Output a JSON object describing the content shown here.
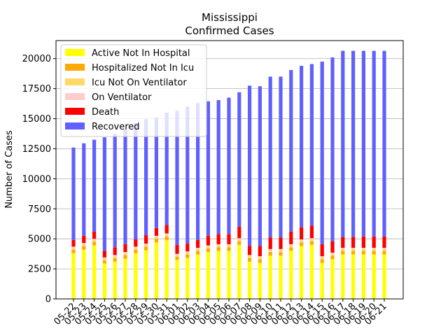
{
  "chart_data": {
    "type": "bar",
    "stacked": true,
    "title": "Mississippi",
    "subtitle": "Confirmed Cases",
    "xlabel": "",
    "ylabel": "Number of Cases",
    "ylim": [
      0,
      21500
    ],
    "yticks": [
      0,
      2500,
      5000,
      7500,
      10000,
      12500,
      15000,
      17500,
      20000
    ],
    "ytick_labels": [
      "0",
      "2500",
      "5000",
      "7500",
      "10000",
      "12500",
      "15000",
      "17500",
      "20000"
    ],
    "grid": "horizontal",
    "legend_position": "top-left",
    "categories": [
      "05-22",
      "05-23",
      "05-24",
      "05-25",
      "05-26",
      "05-27",
      "05-28",
      "05-29",
      "05-30",
      "05-31",
      "06-01",
      "06-02",
      "06-03",
      "06-04",
      "06-05",
      "06-06",
      "06-07",
      "06-08",
      "06-09",
      "06-10",
      "06-11",
      "06-12",
      "06-13",
      "06-14",
      "06-15",
      "06-16",
      "06-17",
      "06-18",
      "06-19",
      "06-20",
      "06-21"
    ],
    "series": [
      {
        "name": "Active Not In Hospital",
        "color": "#ffff00",
        "values": [
          3800,
          4100,
          4450,
          2950,
          3100,
          3350,
          3800,
          4050,
          4700,
          4900,
          3250,
          3400,
          3700,
          3900,
          4000,
          4000,
          4500,
          3100,
          3000,
          3600,
          3600,
          4000,
          4400,
          4500,
          3000,
          3300,
          3700,
          3700,
          3700,
          3700,
          3700
        ]
      },
      {
        "name": "Hospitalized Not In Icu",
        "color": "#ffaa00",
        "values": [
          300,
          300,
          300,
          250,
          300,
          300,
          300,
          300,
          300,
          300,
          250,
          300,
          300,
          300,
          300,
          300,
          300,
          300,
          300,
          300,
          300,
          300,
          300,
          300,
          300,
          300,
          300,
          300,
          300,
          300,
          300
        ]
      },
      {
        "name": "Icu Not On Ventilator",
        "color": "#ffd966",
        "values": [
          150,
          150,
          150,
          150,
          150,
          150,
          150,
          150,
          150,
          150,
          150,
          150,
          150,
          150,
          150,
          150,
          150,
          150,
          150,
          150,
          150,
          150,
          150,
          150,
          150,
          150,
          150,
          150,
          150,
          150,
          150
        ]
      },
      {
        "name": "On Ventilator",
        "color": "#ffcccc",
        "values": [
          100,
          100,
          100,
          100,
          100,
          100,
          100,
          100,
          100,
          100,
          100,
          100,
          100,
          100,
          100,
          100,
          100,
          100,
          100,
          100,
          100,
          100,
          100,
          100,
          100,
          100,
          100,
          100,
          100,
          100,
          100
        ]
      },
      {
        "name": "Death",
        "color": "#ff0000",
        "values": [
          550,
          600,
          600,
          550,
          650,
          650,
          600,
          700,
          650,
          700,
          750,
          650,
          650,
          800,
          850,
          850,
          950,
          750,
          850,
          950,
          950,
          1050,
          1000,
          1050,
          1000,
          950,
          900,
          900,
          950,
          950,
          950
        ]
      },
      {
        "name": "Recovered",
        "color": "#6060ff",
        "values": [
          7700,
          7700,
          7650,
          9450,
          9450,
          9550,
          9700,
          9650,
          9200,
          9350,
          11150,
          11400,
          11400,
          11200,
          11150,
          11350,
          11200,
          13350,
          13300,
          13400,
          13400,
          13450,
          13450,
          13450,
          15200,
          15300,
          15500,
          15500,
          15450,
          15450,
          15450
        ]
      }
    ]
  }
}
